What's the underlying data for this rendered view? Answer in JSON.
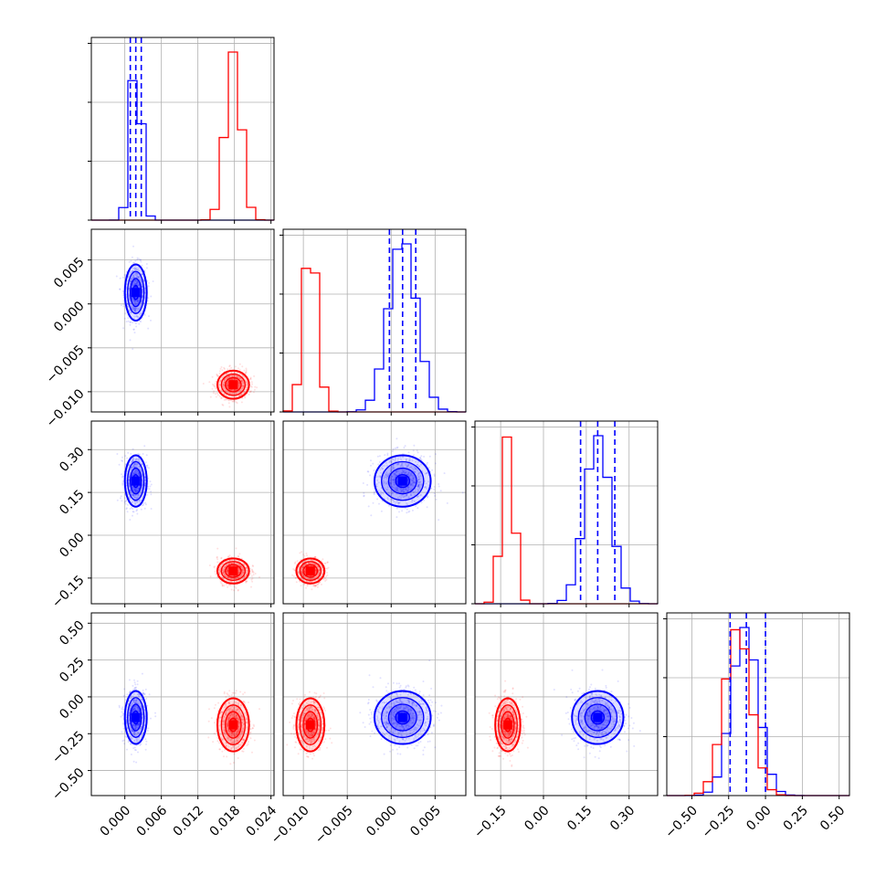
{
  "chart_data": {
    "type": "scatter",
    "layout": "corner",
    "grid": true,
    "parameters": [
      {
        "range": [
          -0.0055,
          0.0245
        ],
        "ticks": [
          0.0,
          0.006,
          0.012,
          0.018,
          0.024
        ],
        "tick_labels": [
          "0.000",
          "0.006",
          "0.012",
          "0.018",
          "0.024"
        ]
      },
      {
        "range": [
          -0.0123,
          0.0085
        ],
        "ticks": [
          -0.01,
          -0.005,
          0.0,
          0.005
        ],
        "tick_labels": [
          "−0.010",
          "−0.005",
          "0.000",
          "0.005"
        ]
      },
      {
        "range": [
          -0.24,
          0.4
        ],
        "ticks": [
          -0.15,
          0.0,
          0.15,
          0.3
        ],
        "tick_labels": [
          "−0.15",
          "0.00",
          "0.15",
          "0.30"
        ]
      },
      {
        "range": [
          -0.67,
          0.57
        ],
        "ticks": [
          -0.5,
          -0.25,
          0.0,
          0.25,
          0.5
        ],
        "tick_labels": [
          "−0.50",
          "−0.25",
          "0.00",
          "0.25",
          "0.50"
        ]
      }
    ],
    "series": [
      {
        "color": "#0000ff",
        "centers": [
          0.0018,
          0.0013,
          0.19,
          -0.14
        ],
        "spreads": [
          0.0009,
          0.0016,
          0.045,
          0.09
        ],
        "quantiles": [
          [
            0.0009,
            0.0018,
            0.0027
          ],
          [
            -0.0002,
            0.0013,
            0.0028
          ],
          [
            0.13,
            0.19,
            0.25
          ],
          [
            -0.24,
            -0.13,
            0.0
          ]
        ]
      },
      {
        "color": "#ff0000",
        "centers": [
          0.0178,
          -0.0092,
          -0.125,
          -0.19
        ],
        "spreads": [
          0.0013,
          0.0008,
          0.022,
          0.09
        ],
        "quantiles": []
      }
    ]
  }
}
